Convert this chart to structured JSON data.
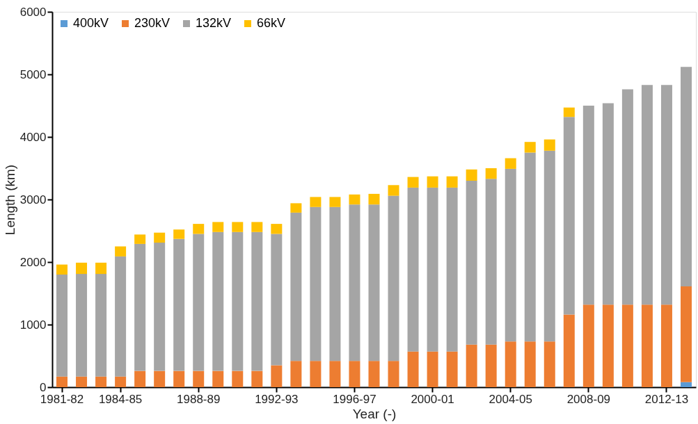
{
  "chart_data": {
    "type": "bar",
    "stacked": true,
    "xlabel": "Year (-)",
    "ylabel": "Length (km)",
    "categories": [
      "1981-82",
      null,
      null,
      "1984-85",
      null,
      null,
      null,
      "1988-89",
      null,
      null,
      null,
      "1992-93",
      null,
      null,
      null,
      "1996-97",
      null,
      null,
      null,
      "2000-01",
      null,
      null,
      null,
      "2004-05",
      null,
      null,
      null,
      "2008-09",
      null,
      null,
      null,
      "2012-13",
      null
    ],
    "series": [
      {
        "name": "400kV",
        "color": "#5b9bd5",
        "values": [
          0,
          0,
          0,
          0,
          0,
          0,
          0,
          0,
          0,
          0,
          0,
          0,
          0,
          0,
          0,
          0,
          0,
          0,
          0,
          0,
          0,
          0,
          0,
          0,
          0,
          0,
          0,
          0,
          0,
          0,
          0,
          0,
          80
        ]
      },
      {
        "name": "230kV",
        "color": "#ed7d31",
        "values": [
          170,
          170,
          170,
          170,
          260,
          260,
          260,
          260,
          260,
          260,
          260,
          350,
          420,
          420,
          420,
          420,
          420,
          420,
          570,
          570,
          570,
          680,
          680,
          730,
          730,
          730,
          1160,
          1320,
          1320,
          1320,
          1320,
          1320,
          1530
        ]
      },
      {
        "name": "132kV",
        "color": "#a5a5a5",
        "values": [
          1630,
          1640,
          1640,
          1920,
          2030,
          2050,
          2110,
          2190,
          2220,
          2220,
          2220,
          2100,
          2370,
          2460,
          2460,
          2500,
          2500,
          2640,
          2620,
          2620,
          2620,
          2620,
          2650,
          2760,
          3020,
          3050,
          3160,
          3180,
          3220,
          3440,
          3510,
          3510,
          3510
        ]
      },
      {
        "name": "66kV",
        "color": "#ffc000",
        "values": [
          160,
          180,
          180,
          160,
          150,
          160,
          150,
          160,
          160,
          160,
          160,
          160,
          150,
          160,
          160,
          160,
          170,
          170,
          170,
          180,
          180,
          180,
          170,
          170,
          170,
          180,
          150,
          0,
          0,
          0,
          0,
          0,
          0
        ]
      }
    ],
    "ylim": [
      0,
      6000
    ],
    "yticks": [
      0,
      1000,
      2000,
      3000,
      4000,
      5000,
      6000
    ],
    "grid": false,
    "legend": "top left"
  }
}
